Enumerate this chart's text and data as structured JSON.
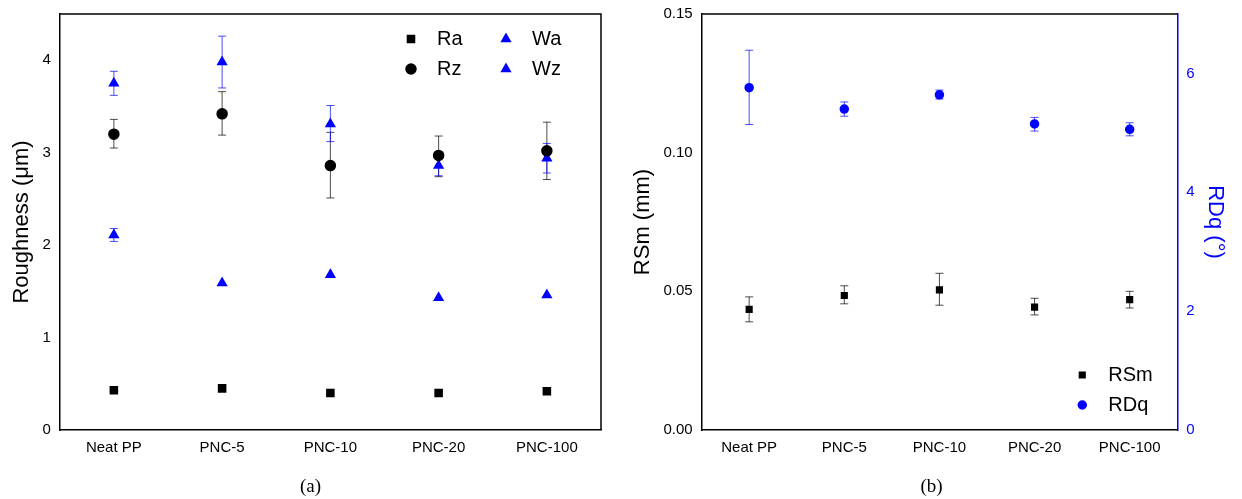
{
  "chart_data": [
    {
      "type": "scatter",
      "ylabel": "Roughness (μm)",
      "categories": [
        "Neat PP",
        "PNC-5",
        "PNC-10",
        "PNC-20",
        "PNC-100"
      ],
      "ylim": [
        0,
        4.5
      ],
      "yticks": [
        0,
        1,
        2,
        3,
        4
      ],
      "legend": "top right",
      "grid": false,
      "annotations": [
        "(a)"
      ],
      "series": [
        {
          "name": "Ra",
          "color": "#000000",
          "marker": "square",
          "values": [
            0.43,
            0.45,
            0.4,
            0.4,
            0.42
          ]
        },
        {
          "name": "Rz",
          "color": "#000000",
          "marker": "circle",
          "values": [
            3.2,
            3.42,
            2.86,
            2.97,
            3.02
          ],
          "errors": [
            [
              3.05,
              3.36
            ],
            [
              3.19,
              3.66
            ],
            [
              2.51,
              3.22
            ],
            [
              2.74,
              3.18
            ],
            [
              2.71,
              3.33
            ]
          ]
        },
        {
          "name": "Wa",
          "color": "#0000ff",
          "marker": "triangle",
          "values": [
            3.75,
            3.98,
            3.31,
            2.86,
            2.94
          ],
          "errors": [
            [
              3.62,
              3.88
            ],
            [
              3.7,
              4.26
            ],
            [
              3.12,
              3.51
            ],
            [
              2.75,
              2.95
            ],
            [
              2.78,
              3.1
            ]
          ]
        },
        {
          "name": "Wz",
          "color": "#0000ff",
          "marker": "triangle",
          "values": [
            2.11,
            1.59,
            1.68,
            1.43,
            1.46
          ],
          "errors": [
            [
              2.04,
              2.18
            ],
            null,
            null,
            null,
            null
          ]
        }
      ]
    },
    {
      "type": "scatter",
      "ylabel": "RSm (mm)",
      "y2label": "RDq (°)",
      "categories": [
        "Neat PP",
        "PNC-5",
        "PNC-10",
        "PNC-20",
        "PNC-100"
      ],
      "ylim": [
        0,
        0.15
      ],
      "yticks": [
        {
          "value": 0,
          "label": "0.00"
        },
        {
          "value": 0.05,
          "label": "0.05"
        },
        {
          "value": 0.1,
          "label": "0.10"
        },
        {
          "value": 0.15,
          "label": "0.15"
        }
      ],
      "y2lim": [
        0,
        7
      ],
      "y2ticks": [
        0,
        2,
        4,
        6
      ],
      "legend": "bottom right",
      "grid": false,
      "annotations": [
        "(b)"
      ],
      "series": [
        {
          "name": "RSm",
          "color": "#000000",
          "marker": "square",
          "values": [
            0.0435,
            0.0485,
            0.0505,
            0.0443,
            0.047
          ],
          "errors": [
            [
              0.039,
              0.048
            ],
            [
              0.0455,
              0.052
            ],
            [
              0.045,
              0.0565
            ],
            [
              0.0415,
              0.0475
            ],
            [
              0.044,
              0.05
            ]
          ]
        },
        {
          "name": "RDq",
          "color": "#0000ff",
          "marker": "circle",
          "axis": "y2",
          "values": [
            5.76,
            5.4,
            5.64,
            5.15,
            5.06
          ],
          "errors": [
            [
              5.14,
              6.39
            ],
            [
              5.28,
              5.52
            ],
            [
              5.57,
              5.72
            ],
            [
              5.03,
              5.26
            ],
            [
              4.95,
              5.17
            ]
          ]
        }
      ]
    }
  ]
}
